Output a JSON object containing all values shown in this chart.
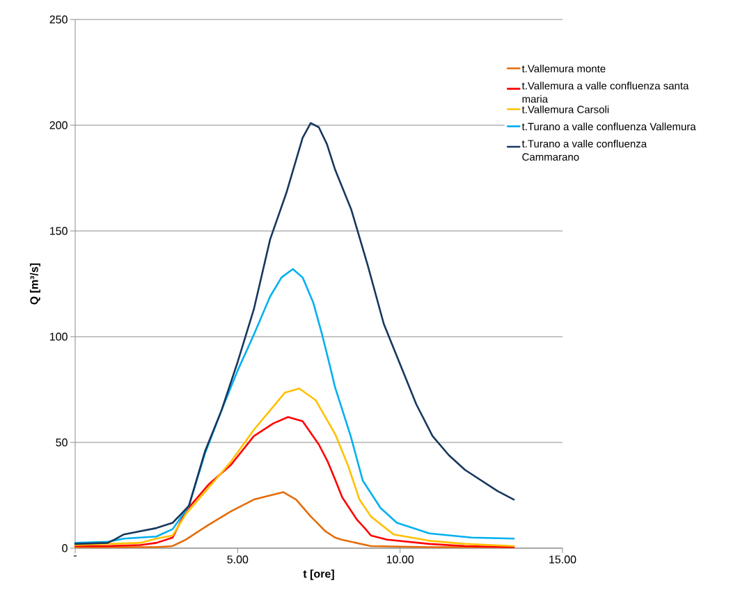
{
  "chart_data": {
    "type": "line",
    "xlabel": "t [ore]",
    "ylabel": "Q [m³/s]",
    "xlim": [
      0,
      15
    ],
    "ylim": [
      0,
      250
    ],
    "xticks": [
      {
        "value": 0,
        "label": "-"
      },
      {
        "value": 5,
        "label": "5.00"
      },
      {
        "value": 10,
        "label": "10.00"
      },
      {
        "value": 15,
        "label": "15.00"
      }
    ],
    "yticks": [
      0,
      50,
      100,
      150,
      200,
      250
    ],
    "grid": "y",
    "legend": "top right",
    "marker": "none",
    "line_style": "solid",
    "series": [
      {
        "name": "t.Vallemura monte",
        "color": "#e46c0a",
        "x": [
          0,
          1,
          2,
          2.5,
          3,
          3.4,
          4.1,
          4.8,
          5.5,
          6.4,
          6.8,
          7.25,
          7.7,
          8,
          8.2,
          9.1,
          10.9,
          13.5
        ],
        "values": [
          0.5,
          0.5,
          0.5,
          0.5,
          1,
          4,
          11,
          17.5,
          23,
          26.5,
          23,
          15,
          8,
          5,
          4,
          1,
          0.5,
          0.5
        ]
      },
      {
        "name": "t.Vallemura a valle confluenza santa maria",
        "color": "#ff0000",
        "x": [
          0,
          1,
          2,
          2.5,
          3,
          3.4,
          4.1,
          4.8,
          5.5,
          6.1,
          6.55,
          7,
          7.5,
          7.77,
          8,
          8.22,
          8.67,
          8.94,
          9.1,
          9.6,
          10.9,
          12,
          13.5
        ],
        "values": [
          1,
          1,
          1.5,
          2.5,
          5,
          17.5,
          30,
          39.5,
          53,
          59,
          62,
          60,
          49,
          41,
          32.5,
          24,
          13.5,
          9,
          6,
          4,
          2,
          1,
          0.5
        ]
      },
      {
        "name": "t.Vallemura Carsoli",
        "color": "#ffc000",
        "x": [
          0,
          1,
          2,
          2.5,
          3,
          3.4,
          4.1,
          4.8,
          5.5,
          6.1,
          6.45,
          6.9,
          7.4,
          8,
          8.4,
          8.75,
          9.1,
          9.8,
          10.9,
          12,
          13.5
        ],
        "values": [
          1.5,
          2,
          2.5,
          4.5,
          6,
          16,
          28.5,
          41,
          56,
          67,
          73.5,
          75.5,
          70,
          54,
          39,
          23,
          15,
          6.5,
          3.5,
          2,
          1
        ]
      },
      {
        "name": "t.Turano a valle confluenza Vallemura",
        "color": "#00b0f0",
        "x": [
          0,
          1,
          1.5,
          2,
          2.5,
          3,
          3.5,
          4,
          4.5,
          5,
          5.5,
          6,
          6.35,
          6.7,
          7,
          7.33,
          7.6,
          7.86,
          8,
          8.48,
          8.85,
          9.4,
          9.9,
          10.9,
          12.2,
          13.5
        ],
        "values": [
          2.5,
          3,
          4.5,
          5,
          5.5,
          9,
          20,
          45,
          65,
          84,
          101,
          119,
          128,
          132,
          128,
          116,
          101,
          85,
          76,
          53,
          32,
          19,
          12,
          7,
          5,
          4.5
        ]
      },
      {
        "name": "t.Turano a valle confluenza Cammarano",
        "color": "#17375e",
        "x": [
          0,
          1,
          1.2,
          1.5,
          2,
          2.5,
          3,
          3.5,
          4,
          4.5,
          5,
          5.5,
          6,
          6.5,
          7,
          7.25,
          7.5,
          7.75,
          8,
          8.5,
          9,
          9.5,
          10,
          10.5,
          11,
          11.5,
          12,
          12.5,
          13,
          13.5
        ],
        "values": [
          2,
          2.5,
          4,
          6.5,
          8,
          9.5,
          12,
          20,
          46,
          65,
          88,
          113,
          146,
          168,
          194,
          201,
          199,
          191,
          179,
          160,
          134,
          106,
          87,
          68,
          53,
          44,
          37,
          32,
          27,
          23
        ]
      }
    ]
  }
}
